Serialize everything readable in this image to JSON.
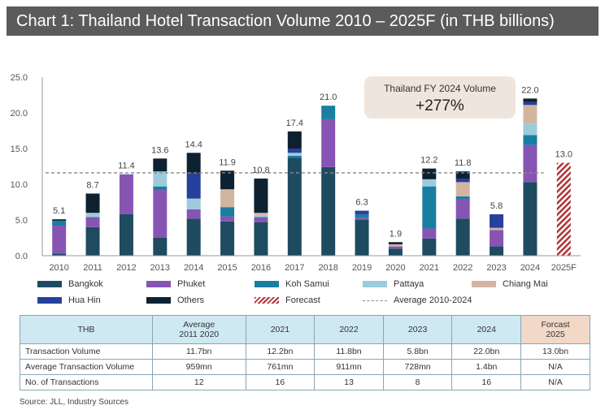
{
  "title": "Chart 1: Thailand Hotel Transaction Volume 2010 – 2025F (in THB billions)",
  "colors": {
    "Bangkok": "#1e4b5f",
    "Phuket": "#8655b4",
    "Koh Samui": "#1a7ea0",
    "Pattaya": "#9ccbdb",
    "Chiang Mai": "#d2b5a1",
    "Hua Hin": "#27409c",
    "Others": "#0d2131",
    "Forecast": "#b0343a",
    "Average": "#888888"
  },
  "chart_data": {
    "type": "bar",
    "stacked": true,
    "categories": [
      "2010",
      "2011",
      "2012",
      "2013",
      "2014",
      "2015",
      "2016",
      "2017",
      "2018",
      "2019",
      "2020",
      "2021",
      "2022",
      "2023",
      "2024",
      "2025F"
    ],
    "ylim": [
      0,
      25
    ],
    "yticks": [
      "0.0",
      "5.0",
      "10.0",
      "15.0",
      "20.0",
      "25.0"
    ],
    "grid": false,
    "legend_position": "bottom",
    "series": [
      {
        "name": "Bangkok",
        "values": [
          0.3,
          4.0,
          5.8,
          2.5,
          5.2,
          4.8,
          4.7,
          13.7,
          12.4,
          5.0,
          1.0,
          2.4,
          5.2,
          1.3,
          10.3,
          0
        ]
      },
      {
        "name": "Phuket",
        "values": [
          3.9,
          1.4,
          5.6,
          6.7,
          1.3,
          0.7,
          0.7,
          0.0,
          6.7,
          0.3,
          0.3,
          1.4,
          2.7,
          2.3,
          5.2,
          0
        ]
      },
      {
        "name": "Koh Samui",
        "values": [
          0.7,
          0.0,
          0.0,
          0.5,
          0.0,
          1.3,
          0.0,
          0.3,
          1.9,
          0.5,
          0.0,
          5.9,
          0.4,
          0.0,
          1.4,
          0
        ]
      },
      {
        "name": "Pattaya",
        "values": [
          0.0,
          0.6,
          0.0,
          2.1,
          1.5,
          0.0,
          0.3,
          0.4,
          0.0,
          0.0,
          0.0,
          1.0,
          0.0,
          0.0,
          1.6,
          0
        ]
      },
      {
        "name": "Chiang Mai",
        "values": [
          0.0,
          0.0,
          0.0,
          0.0,
          0.0,
          2.5,
          0.3,
          0.0,
          0.0,
          0.0,
          0.3,
          0.0,
          2.0,
          0.3,
          2.6,
          0
        ]
      },
      {
        "name": "Hua Hin",
        "values": [
          0.0,
          0.0,
          0.0,
          0.0,
          3.6,
          0.0,
          0.0,
          0.6,
          0.0,
          0.5,
          0.0,
          0.0,
          0.5,
          1.9,
          0.4,
          0
        ]
      },
      {
        "name": "Others",
        "values": [
          0.2,
          2.7,
          0.0,
          1.8,
          2.8,
          2.6,
          4.8,
          2.4,
          0.0,
          0.0,
          0.3,
          1.5,
          1.0,
          0.0,
          0.5,
          0
        ]
      },
      {
        "name": "Forecast",
        "values": [
          0,
          0,
          0,
          0,
          0,
          0,
          0,
          0,
          0,
          0,
          0,
          0,
          0,
          0,
          0,
          13.0
        ]
      }
    ],
    "totals": [
      "5.1",
      "8.7",
      "11.4",
      "13.6",
      "14.4",
      "11.9",
      "10.8",
      "17.4",
      "21.0",
      "6.3",
      "1.9",
      "12.2",
      "11.8",
      "5.8",
      "22.0",
      "13.0"
    ],
    "average_line": {
      "name": "Average 2010-2024",
      "value": 11.6
    },
    "annotation": {
      "line1": "Thailand FY 2024 Volume",
      "line2": "+277%"
    }
  },
  "legend": [
    {
      "name": "Bangkok",
      "style": "box"
    },
    {
      "name": "Phuket",
      "style": "box"
    },
    {
      "name": "Koh Samui",
      "style": "box"
    },
    {
      "name": "Pattaya",
      "style": "box"
    },
    {
      "name": "Chiang Mai",
      "style": "box"
    },
    {
      "name": "Hua Hin",
      "style": "box"
    },
    {
      "name": "Others",
      "style": "box"
    },
    {
      "name": "Forecast",
      "style": "hatch"
    },
    {
      "name": "Average 2010-2024",
      "style": "dash"
    }
  ],
  "table": {
    "headers": [
      "THB",
      "Average\n2011 2020",
      "2021",
      "2022",
      "2023",
      "2024",
      "Forcast\n2025"
    ],
    "rows": [
      {
        "label": "Transaction Volume",
        "cells": [
          "11.7bn",
          "12.2bn",
          "11.8bn",
          "5.8bn",
          "22.0bn",
          "13.0bn"
        ]
      },
      {
        "label": "Average Transaction Volume",
        "cells": [
          "959mn",
          "761mn",
          "911mn",
          "728mn",
          "1.4bn",
          "N/A"
        ]
      },
      {
        "label": "No. of Transactions",
        "cells": [
          "12",
          "16",
          "13",
          "8",
          "16",
          "N/A"
        ]
      }
    ]
  },
  "source": "Source: JLL, Industry Sources"
}
